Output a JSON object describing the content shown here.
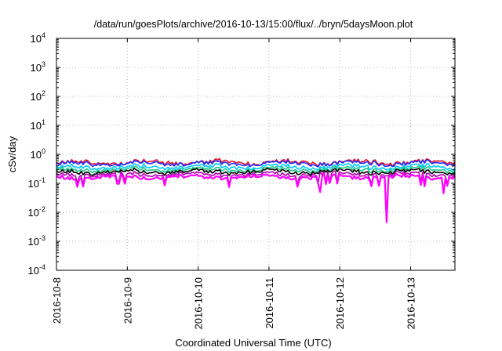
{
  "chart_data": {
    "type": "line",
    "title": "/data/run/goesPlots/archive/2016-10-13/15:00/flux/../bryn/5daysMoon.plot",
    "xlabel": "Coordinated Universal Time (UTC)",
    "ylabel": "cSv/day",
    "yscale": "log",
    "ylim": [
      0.0001,
      10000
    ],
    "xlim": [
      "2016-10-08 00:00",
      "2016-10-13 15:00"
    ],
    "grid": true,
    "legend": "none",
    "y_ticks": [
      {
        "base": "10",
        "exp": "-4"
      },
      {
        "base": "10",
        "exp": "-3"
      },
      {
        "base": "10",
        "exp": "-2"
      },
      {
        "base": "10",
        "exp": "-1"
      },
      {
        "base": "10",
        "exp": "0"
      },
      {
        "base": "10",
        "exp": "1"
      },
      {
        "base": "10",
        "exp": "2"
      },
      {
        "base": "10",
        "exp": "3"
      },
      {
        "base": "10",
        "exp": "4"
      }
    ],
    "x_ticks": [
      "2016-10-8",
      "2016-10-9",
      "2016-10-10",
      "2016-10-11",
      "2016-10-12",
      "2016-10-13"
    ],
    "series": [
      {
        "color": "#e8102a",
        "level": 0.55
      },
      {
        "color": "#1f2dff",
        "level": 0.5
      },
      {
        "color": "#00c8ff",
        "level": 0.38
      },
      {
        "color": "#1cc88a",
        "level": 0.31
      },
      {
        "color": "#000000",
        "level": 0.26
      },
      {
        "color": "#b000b0",
        "level": 0.21
      },
      {
        "color": "#ff00ff",
        "level": 0.17,
        "dips": [
          {
            "x": "2016-10-11 17:30",
            "y": 0.05
          },
          {
            "x": "2016-10-12 15:45",
            "y": 0.0045
          },
          {
            "x": "2016-10-13 11:00",
            "y": 0.045
          }
        ]
      }
    ]
  }
}
